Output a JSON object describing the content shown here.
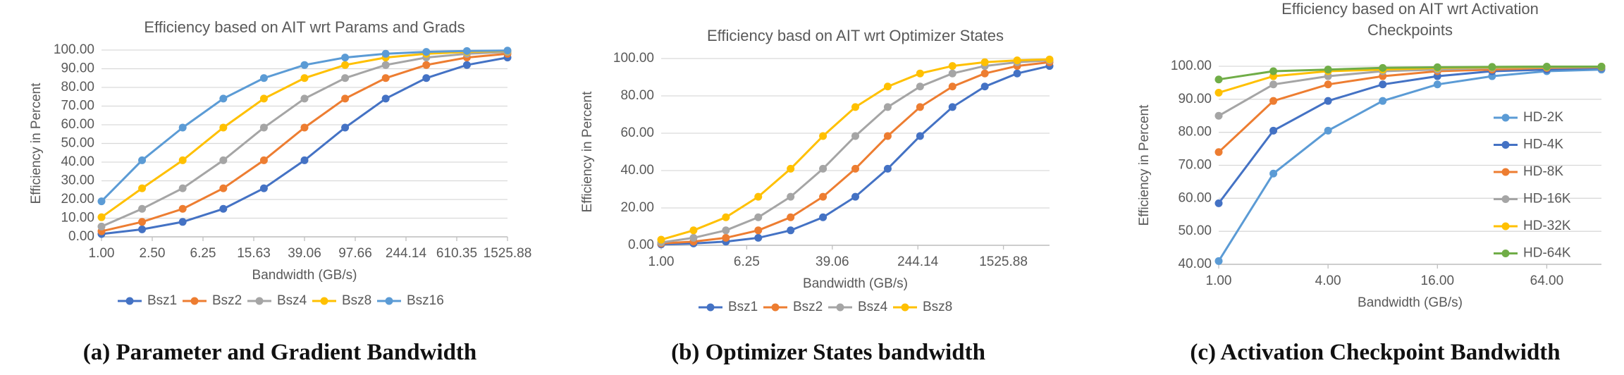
{
  "chart_data": [
    {
      "type": "line",
      "title": "Efficiency based on AIT wrt Params and Grads",
      "xlabel": "Bandwidth (GB/s)",
      "ylabel": "Efficiency in Percent",
      "caption": "(a) Parameter and Gradient Bandwidth",
      "log_x": true,
      "grid": true,
      "legend": "bottom",
      "x": [
        1,
        2.08,
        4.33,
        9.02,
        18.77,
        39.06,
        81.3,
        169.2,
        352.2,
        733.1,
        1525.88
      ],
      "xlim": [
        1,
        1525.88
      ],
      "xticks": [
        {
          "value": 1,
          "label": "1.00"
        },
        {
          "value": 2.5,
          "label": "2.50"
        },
        {
          "value": 6.25,
          "label": "6.25"
        },
        {
          "value": 15.625,
          "label": "15.63"
        },
        {
          "value": 39.0625,
          "label": "39.06"
        },
        {
          "value": 97.65625,
          "label": "97.66"
        },
        {
          "value": 244.140625,
          "label": "244.14"
        },
        {
          "value": 610.3515625,
          "label": "610.35"
        },
        {
          "value": 1525.87890625,
          "label": "1525.88"
        }
      ],
      "ylim": [
        0,
        100
      ],
      "yticks": [
        {
          "value": 0,
          "label": "0.00"
        },
        {
          "value": 10,
          "label": "10.00"
        },
        {
          "value": 20,
          "label": "20.00"
        },
        {
          "value": 30,
          "label": "30.00"
        },
        {
          "value": 40,
          "label": "40.00"
        },
        {
          "value": 50,
          "label": "50.00"
        },
        {
          "value": 60,
          "label": "60.00"
        },
        {
          "value": 70,
          "label": "70.00"
        },
        {
          "value": 80,
          "label": "80.00"
        },
        {
          "value": 90,
          "label": "90.00"
        },
        {
          "value": 100,
          "label": "100.00"
        }
      ],
      "series": [
        {
          "name": "Bsz1",
          "color": "#4472c4",
          "values": [
            1.5,
            4,
            8,
            15,
            26,
            41,
            58.5,
            74,
            85,
            92,
            96
          ]
        },
        {
          "name": "Bsz2",
          "color": "#ed7d31",
          "values": [
            3,
            8,
            15,
            26,
            41,
            58.5,
            74,
            85,
            92,
            96,
            98
          ]
        },
        {
          "name": "Bsz4",
          "color": "#a5a5a5",
          "values": [
            5.5,
            15,
            26,
            41,
            58.5,
            74,
            85,
            92,
            96,
            98,
            99
          ]
        },
        {
          "name": "Bsz8",
          "color": "#ffc000",
          "values": [
            10.5,
            26,
            41,
            58.5,
            74,
            85,
            92,
            96,
            98,
            99,
            99.5
          ]
        },
        {
          "name": "Bsz16",
          "color": "#5b9bd5",
          "values": [
            19,
            41,
            58.5,
            74,
            85,
            92,
            96,
            98,
            99,
            99.5,
            99.7
          ]
        }
      ]
    },
    {
      "type": "line",
      "title": "Efficiency basd on AIT wrt Optimizer States",
      "xlabel": "Bandwidth (GB/s)",
      "ylabel": "Efficiency in Percent",
      "caption": "(b) Optimizer States bandwidth",
      "log_x": true,
      "grid": true,
      "legend": "bottom",
      "x": [
        1,
        2,
        4,
        8,
        16,
        32,
        64,
        128,
        256,
        512,
        1024,
        2048,
        4096
      ],
      "xlim": [
        1,
        4096
      ],
      "xticks": [
        {
          "value": 1,
          "label": "1.00"
        },
        {
          "value": 6.25,
          "label": "6.25"
        },
        {
          "value": 39.0625,
          "label": "39.06"
        },
        {
          "value": 244.140625,
          "label": "244.14"
        },
        {
          "value": 1525.87890625,
          "label": "1525.88"
        }
      ],
      "ylim": [
        0,
        100
      ],
      "yticks": [
        {
          "value": 0,
          "label": "0.00"
        },
        {
          "value": 20,
          "label": "20.00"
        },
        {
          "value": 40,
          "label": "40.00"
        },
        {
          "value": 60,
          "label": "60.00"
        },
        {
          "value": 80,
          "label": "80.00"
        },
        {
          "value": 100,
          "label": "100.00"
        }
      ],
      "series": [
        {
          "name": "Bsz1",
          "color": "#4472c4",
          "values": [
            0.5,
            1,
            2,
            4,
            8,
            15,
            26,
            41,
            58.5,
            74,
            85,
            92,
            96
          ]
        },
        {
          "name": "Bsz2",
          "color": "#ed7d31",
          "values": [
            1,
            2,
            4,
            8,
            15,
            26,
            41,
            58.5,
            74,
            85,
            92,
            96,
            98
          ]
        },
        {
          "name": "Bsz4",
          "color": "#a5a5a5",
          "values": [
            1.5,
            4,
            8,
            15,
            26,
            41,
            58.5,
            74,
            85,
            92,
            96,
            98,
            99
          ]
        },
        {
          "name": "Bsz8",
          "color": "#ffc000",
          "values": [
            3,
            8,
            15,
            26,
            41,
            58.5,
            74,
            85,
            92,
            96,
            98,
            99,
            99.5
          ]
        }
      ]
    },
    {
      "type": "line",
      "title": "Efficiency based on AIT wrt Activation Checkpoints",
      "xlabel": "Bandwidth (GB/s)",
      "ylabel": "Efficiency in Percent",
      "caption": "(c) Activation Checkpoint Bandwidth",
      "log_x": true,
      "grid": true,
      "legend": "right",
      "x": [
        1,
        2,
        4,
        8,
        16,
        32,
        64,
        128
      ],
      "xlim": [
        1,
        128
      ],
      "xticks": [
        {
          "value": 1,
          "label": "1.00"
        },
        {
          "value": 4,
          "label": "4.00"
        },
        {
          "value": 16,
          "label": "16.00"
        },
        {
          "value": 64,
          "label": "64.00"
        }
      ],
      "ylim": [
        40,
        100
      ],
      "yticks": [
        {
          "value": 40,
          "label": "40.00"
        },
        {
          "value": 50,
          "label": "50.00"
        },
        {
          "value": 60,
          "label": "60.00"
        },
        {
          "value": 70,
          "label": "70.00"
        },
        {
          "value": 80,
          "label": "80.00"
        },
        {
          "value": 90,
          "label": "90.00"
        },
        {
          "value": 100,
          "label": "100.00"
        }
      ],
      "series": [
        {
          "name": "HD-2K",
          "color": "#5b9bd5",
          "values": [
            41,
            67.5,
            80.5,
            89.5,
            94.5,
            97,
            98.5,
            99
          ]
        },
        {
          "name": "HD-4K",
          "color": "#4472c4",
          "values": [
            58.5,
            80.5,
            89.5,
            94.5,
            97,
            98.5,
            99,
            99.5
          ]
        },
        {
          "name": "HD-8K",
          "color": "#ed7d31",
          "values": [
            74,
            89.5,
            94.5,
            97,
            98.5,
            99,
            99.5,
            99.7
          ]
        },
        {
          "name": "HD-16K",
          "color": "#a5a5a5",
          "values": [
            85,
            94.5,
            97,
            98.5,
            99,
            99.5,
            99.7,
            99.8
          ]
        },
        {
          "name": "HD-32K",
          "color": "#ffc000",
          "values": [
            92,
            97,
            98.5,
            99,
            99.5,
            99.7,
            99.8,
            99.9
          ]
        },
        {
          "name": "HD-64K",
          "color": "#70ad47",
          "values": [
            96,
            98.5,
            99,
            99.5,
            99.7,
            99.8,
            99.9,
            99.9
          ]
        }
      ]
    }
  ]
}
